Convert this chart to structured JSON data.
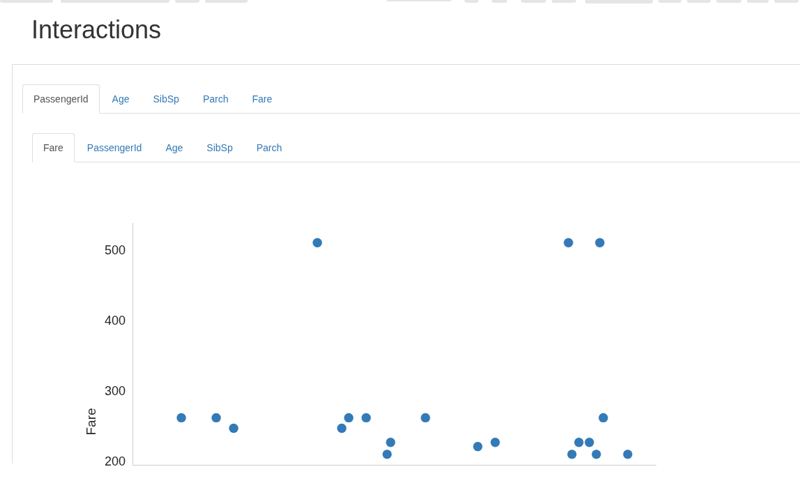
{
  "chart_data": {
    "type": "scatter",
    "title": "Interactions",
    "ylabel": "Fare",
    "annotations": [
      "PassengerId",
      "Age",
      "SibSp",
      "Parch",
      "Fare",
      "Fare",
      "PassengerId",
      "Age",
      "SibSp",
      "Parch"
    ],
    "categories": [
      null,
      null,
      null,
      null,
      null,
      null,
      null,
      null,
      null,
      null,
      null,
      null,
      null,
      null,
      null,
      null,
      null,
      null,
      null,
      null,
      null,
      null,
      null,
      null,
      null,
      null,
      null,
      null,
      null,
      null,
      null,
      null,
      null,
      null,
      null,
      null,
      null,
      null,
      null,
      null,
      null,
      null,
      null,
      null,
      null,
      null,
      null,
      null,
      null,
      null,
      null,
      null,
      null,
      null,
      null,
      null,
      null,
      null,
      null,
      null,
      null,
      null,
      null,
      null,
      null,
      null,
      null,
      null,
      null,
      null,
      null,
      null,
      null,
      null,
      null,
      null,
      null,
      null,
      null,
      null,
      null,
      null,
      null,
      null,
      null,
      null,
      null,
      null,
      null,
      null,
      null,
      null,
      null,
      null,
      null,
      null,
      null,
      null,
      null,
      null,
      null,
      null,
      null,
      null,
      null,
      null,
      null,
      null,
      null,
      null,
      null,
      null,
      null,
      null,
      null,
      null,
      null,
      null,
      null,
      null,
      null,
      null,
      null,
      null,
      null,
      null,
      null,
      null,
      null,
      null,
      null,
      null,
      null,
      null,
      null,
      null,
      null,
      null,
      null,
      null,
      null,
      null,
      null,
      null,
      null,
      null,
      null,
      null,
      null,
      null,
      null
    ],
    "values": [
      null,
      null,
      null,
      null,
      null,
      null,
      null,
      null,
      null,
      null,
      null,
      null,
      null,
      null,
      263,
      null,
      null,
      null,
      null,
      null,
      null,
      null,
      null,
      null,
      263,
      null,
      null,
      null,
      null,
      248,
      null,
      null,
      null,
      null,
      null,
      null,
      null,
      null,
      null,
      null,
      null,
      null,
      null,
      null,
      null,
      null,
      null,
      null,
      null,
      null,
      null,
      null,
      null,
      512,
      null,
      null,
      null,
      null,
      null,
      null,
      248,
      null,
      263,
      null,
      null,
      null,
      null,
      263,
      null,
      null,
      null,
      null,
      null,
      211,
      228,
      null,
      null,
      null,
      null,
      null,
      null,
      null,
      null,
      null,
      263,
      null,
      null,
      null,
      null,
      null,
      null,
      null,
      null,
      null,
      null,
      null,
      null,
      null,
      null,
      222,
      null,
      null,
      null,
      null,
      228,
      null,
      null,
      null,
      null,
      null,
      null,
      null,
      null,
      null,
      null,
      null,
      null,
      null,
      null,
      null,
      null,
      null,
      null,
      null,
      null,
      512,
      211,
      null,
      228,
      null,
      null,
      228,
      null,
      211,
      512,
      263,
      null,
      null,
      null,
      null,
      null,
      null,
      211,
      null,
      null,
      null,
      null,
      null,
      null,
      null,
      null
    ],
    "color": "#337ab7",
    "marker": "circle",
    "ylim": [
      196,
      540
    ],
    "yticks": [
      200,
      300,
      400,
      500
    ]
  }
}
